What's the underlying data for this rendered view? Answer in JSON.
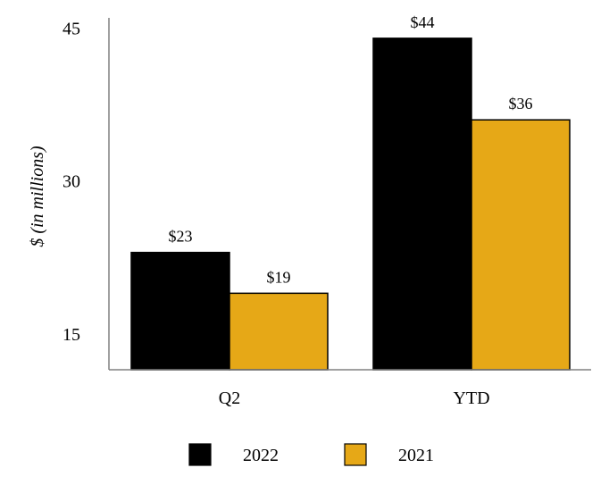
{
  "chart_data": {
    "type": "bar",
    "categories": [
      "Q2",
      "YTD"
    ],
    "series": [
      {
        "name": "2022",
        "values": [
          23,
          44
        ],
        "labels": [
          "$23",
          "$44"
        ],
        "color": "#000000"
      },
      {
        "name": "2021",
        "values": [
          19,
          36
        ],
        "labels": [
          "$19",
          "$36"
        ],
        "color": "#E6A817"
      }
    ],
    "ylabel": "$ (in millions)",
    "xlabel": "",
    "title": "",
    "yticks": [
      15,
      30,
      45
    ],
    "ylim": [
      11.5,
      46
    ],
    "grid": false,
    "legend": "bottom"
  }
}
